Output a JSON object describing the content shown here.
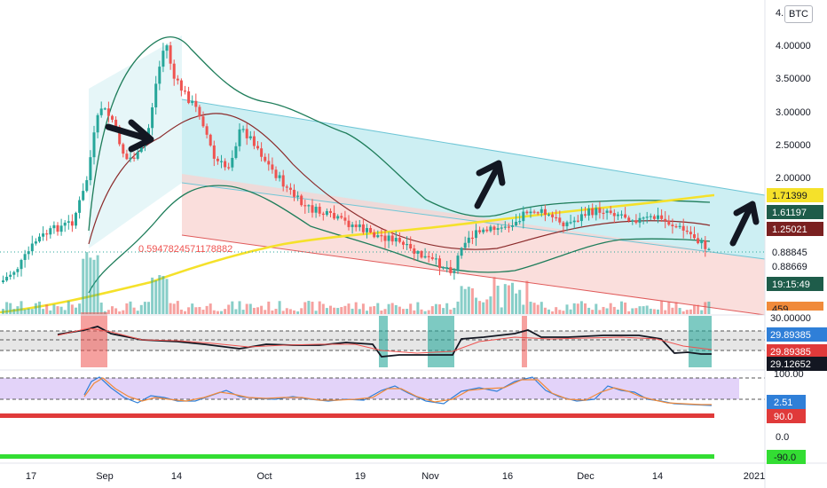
{
  "symbol_badge": "BTC",
  "axis": {
    "price_ticks": [
      "4.",
      "4.00000",
      "3.50000",
      "3.00000",
      "2.50000",
      "2.00000",
      "1.",
      "0."
    ],
    "rsi_ticks": [
      "100.00",
      "0.0"
    ],
    "time_ticks": [
      "17",
      "Sep",
      "14",
      "Oct",
      "19",
      "Nov",
      "16",
      "Dec",
      "14",
      "2021"
    ]
  },
  "fib_label": "0.5947824571178882",
  "price_tags": [
    {
      "text": "1.71399",
      "bg": "#f5e12a",
      "fg": "#131722"
    },
    {
      "text": "1.61197",
      "bg": "#1e5c4a",
      "fg": "#ffffff"
    },
    {
      "text": "1.25021",
      "bg": "#7a2020",
      "fg": "#ffffff"
    },
    {
      "text": "0.88845",
      "bg": "#ffffff",
      "fg": "#131722"
    },
    {
      "text": "0.88669",
      "bg": "#ffffff",
      "fg": "#131722"
    },
    {
      "text": "19:15:49",
      "bg": "#1e5c4a",
      "fg": "#ffffff"
    },
    {
      "text": "459",
      "bg": "#f08a3a",
      "fg": "#131722"
    }
  ],
  "indicator_tags": [
    {
      "text": "30.00000",
      "bg": "#ffffff",
      "fg": "#131722"
    },
    {
      "text": "29.89385",
      "bg": "#2f7fd8",
      "fg": "#ffffff"
    },
    {
      "text": "29.89385",
      "bg": "#e03a3a",
      "fg": "#ffffff"
    },
    {
      "text": "29.12652",
      "bg": "#131722",
      "fg": "#ffffff"
    }
  ],
  "rsi_tags": [
    {
      "text": "2.51",
      "bg": "#2f7fd8",
      "fg": "#ffffff"
    },
    {
      "text": "90.0",
      "bg": "#e03a3a",
      "fg": "#ffffff"
    },
    {
      "text": "-90.0",
      "bg": "#33dd33",
      "fg": "#131722"
    }
  ],
  "colors": {
    "up": "#26a69a",
    "down": "#ef5350",
    "ma_yellow": "#f5e12a",
    "ma_dark": "#8b2a2a",
    "bb": "#1e7d5a",
    "channel_up": "#b8e8ee",
    "channel_down": "#f8d3d0"
  }
}
